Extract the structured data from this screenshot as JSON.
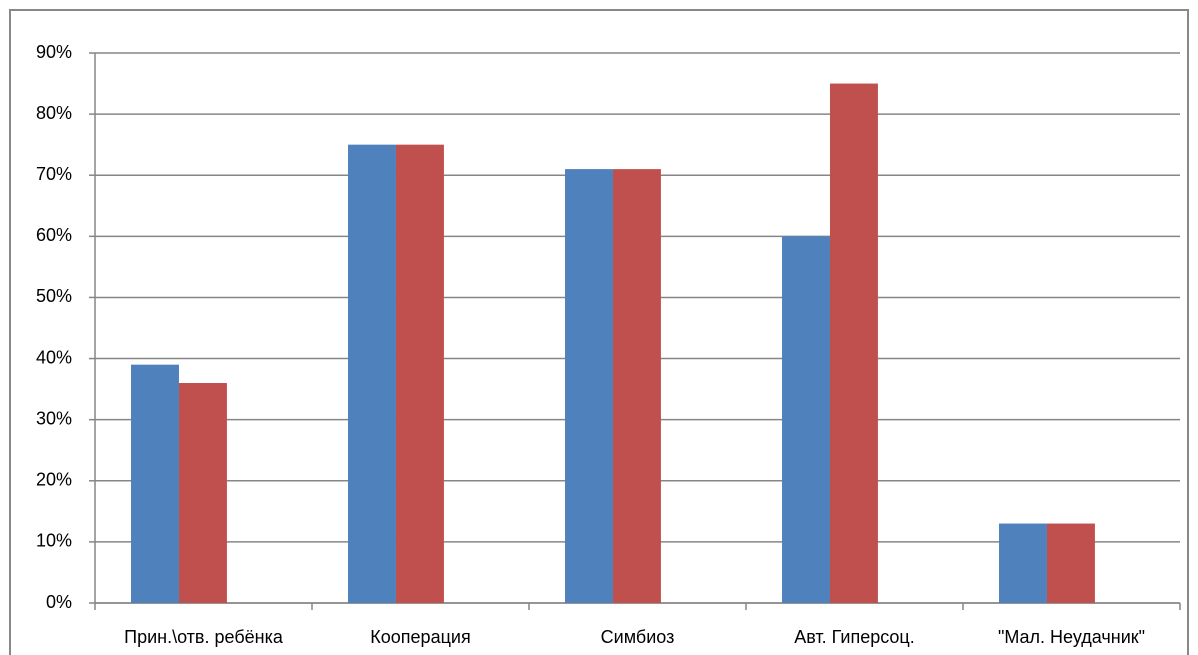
{
  "chart_data": {
    "type": "bar",
    "categories": [
      "Прин.\\отв. ребёнка",
      "Кооперация",
      "Симбиоз",
      "Авт. Гиперсоц.",
      "\"Мал. Неудачник\""
    ],
    "series": [
      {
        "color": "#4f81bd",
        "values": [
          39,
          75,
          71,
          60,
          13
        ]
      },
      {
        "color": "#c0504d",
        "values": [
          36,
          75,
          71,
          85,
          13
        ]
      }
    ],
    "ylim": [
      0,
      90
    ],
    "yticks": [
      {
        "value": 0,
        "label": "0%"
      },
      {
        "value": 10,
        "label": "10%"
      },
      {
        "value": 20,
        "label": "20%"
      },
      {
        "value": 30,
        "label": "30%"
      },
      {
        "value": 40,
        "label": "40%"
      },
      {
        "value": 50,
        "label": "50%"
      },
      {
        "value": 60,
        "label": "60%"
      },
      {
        "value": 70,
        "label": "70%"
      },
      {
        "value": 80,
        "label": "80%"
      },
      {
        "value": 90,
        "label": "90%"
      }
    ],
    "grid": true
  }
}
